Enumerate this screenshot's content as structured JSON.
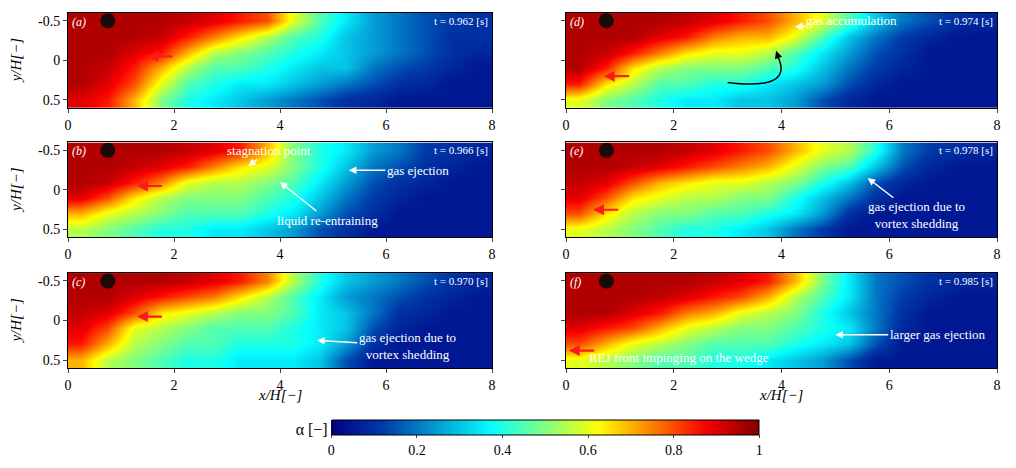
{
  "chart_data": {
    "type": "heatmap",
    "xlabel": "x/H[−]",
    "ylabel": "y/H[−]",
    "xlim": [
      0,
      8
    ],
    "ylim": [
      0.6,
      -0.6
    ],
    "xticks": [
      0,
      2,
      4,
      6,
      8
    ],
    "yticks": [
      -0.5,
      0,
      0.5
    ],
    "x": [
      0.25,
      0.75,
      1.25,
      1.75,
      2.25,
      2.75,
      3.25,
      3.75,
      4.25,
      4.75,
      5.25,
      5.75,
      6.25,
      6.75,
      7.25,
      7.75
    ],
    "y": [
      -0.5,
      -0.3,
      -0.1,
      0.1,
      0.3,
      0.5
    ],
    "colorbar": {
      "title": "α [−]",
      "range": [
        0,
        1
      ],
      "ticks": [
        0,
        0.2,
        0.4,
        0.6,
        0.8,
        1
      ]
    },
    "panels": [
      {
        "label": "(a)",
        "time": "t = 0.962 [s]",
        "dot": [
          0.75,
          -0.5
        ],
        "front_arrow": [
          1.5,
          -0.05
        ],
        "z": [
          [
            0.95,
            0.95,
            0.95,
            0.95,
            0.93,
            0.9,
            0.85,
            0.8,
            0.6,
            0.45,
            0.35,
            0.25,
            0.2,
            0.15,
            0.12,
            0.1
          ],
          [
            0.95,
            0.95,
            0.95,
            0.93,
            0.85,
            0.75,
            0.65,
            0.55,
            0.45,
            0.4,
            0.3,
            0.25,
            0.2,
            0.15,
            0.1,
            0.1
          ],
          [
            0.95,
            0.95,
            0.9,
            0.85,
            0.7,
            0.55,
            0.5,
            0.45,
            0.4,
            0.35,
            0.3,
            0.25,
            0.2,
            0.15,
            0.1,
            0.08
          ],
          [
            0.95,
            0.93,
            0.85,
            0.7,
            0.55,
            0.45,
            0.45,
            0.4,
            0.35,
            0.3,
            0.3,
            0.2,
            0.15,
            0.12,
            0.08,
            0.05
          ],
          [
            0.95,
            0.9,
            0.8,
            0.6,
            0.45,
            0.4,
            0.35,
            0.35,
            0.3,
            0.25,
            0.2,
            0.15,
            0.1,
            0.08,
            0.05,
            0.05
          ],
          [
            0.9,
            0.85,
            0.7,
            0.5,
            0.4,
            0.35,
            0.3,
            0.25,
            0.2,
            0.15,
            0.1,
            0.08,
            0.05,
            0.05,
            0.05,
            0.05
          ]
        ],
        "notes": []
      },
      {
        "label": "(b)",
        "time": "t = 0.966 [s]",
        "dot": [
          0.75,
          -0.5
        ],
        "front_arrow": [
          1.3,
          -0.05
        ],
        "z": [
          [
            0.95,
            0.95,
            0.95,
            0.95,
            0.93,
            0.9,
            0.85,
            0.7,
            0.5,
            0.4,
            0.35,
            0.25,
            0.2,
            0.12,
            0.1,
            0.08
          ],
          [
            0.95,
            0.95,
            0.93,
            0.9,
            0.85,
            0.75,
            0.65,
            0.6,
            0.5,
            0.4,
            0.3,
            0.2,
            0.15,
            0.1,
            0.08,
            0.05
          ],
          [
            0.95,
            0.93,
            0.85,
            0.75,
            0.6,
            0.55,
            0.55,
            0.5,
            0.45,
            0.35,
            0.25,
            0.15,
            0.1,
            0.08,
            0.05,
            0.05
          ],
          [
            0.9,
            0.8,
            0.65,
            0.55,
            0.5,
            0.5,
            0.5,
            0.45,
            0.4,
            0.3,
            0.2,
            0.12,
            0.08,
            0.05,
            0.05,
            0.05
          ],
          [
            0.7,
            0.6,
            0.55,
            0.5,
            0.45,
            0.45,
            0.45,
            0.4,
            0.35,
            0.25,
            0.15,
            0.1,
            0.05,
            0.05,
            0.05,
            0.05
          ],
          [
            0.55,
            0.5,
            0.45,
            0.4,
            0.4,
            0.35,
            0.35,
            0.3,
            0.25,
            0.15,
            0.1,
            0.05,
            0.05,
            0.05,
            0.05,
            0.05
          ]
        ],
        "notes": [
          {
            "text": "stagnation point",
            "x": 3.4,
            "y": -0.3,
            "ax": 3.8,
            "ay": -0.5
          },
          {
            "text": "gas ejection",
            "x": 5.3,
            "y": -0.25,
            "ax": 6.6,
            "ay": -0.25
          },
          {
            "text": "liquid re-entraining",
            "x": 4.0,
            "y": -0.1,
            "ax": 4.9,
            "ay": 0.38
          }
        ]
      },
      {
        "label": "(c)",
        "time": "t = 0.970 [s]",
        "dot": [
          0.75,
          -0.5
        ],
        "front_arrow": [
          1.3,
          -0.05
        ],
        "z": [
          [
            0.95,
            0.95,
            0.95,
            0.95,
            0.93,
            0.9,
            0.85,
            0.75,
            0.55,
            0.4,
            0.3,
            0.25,
            0.2,
            0.15,
            0.1,
            0.08
          ],
          [
            0.95,
            0.95,
            0.9,
            0.85,
            0.8,
            0.75,
            0.65,
            0.55,
            0.45,
            0.35,
            0.25,
            0.2,
            0.15,
            0.1,
            0.08,
            0.05
          ],
          [
            0.93,
            0.9,
            0.8,
            0.65,
            0.6,
            0.55,
            0.5,
            0.5,
            0.45,
            0.35,
            0.3,
            0.2,
            0.1,
            0.08,
            0.05,
            0.05
          ],
          [
            0.9,
            0.8,
            0.6,
            0.55,
            0.5,
            0.45,
            0.45,
            0.45,
            0.4,
            0.35,
            0.3,
            0.15,
            0.08,
            0.05,
            0.05,
            0.05
          ],
          [
            0.85,
            0.7,
            0.55,
            0.5,
            0.45,
            0.45,
            0.4,
            0.4,
            0.4,
            0.35,
            0.25,
            0.1,
            0.05,
            0.05,
            0.05,
            0.05
          ],
          [
            0.7,
            0.55,
            0.5,
            0.45,
            0.4,
            0.4,
            0.35,
            0.35,
            0.35,
            0.3,
            0.15,
            0.05,
            0.05,
            0.05,
            0.05,
            0.05
          ]
        ],
        "notes": [
          {
            "text": "gas ejection due to\nvortex shedding",
            "x": 4.7,
            "y": 0.25,
            "ax": 6.4,
            "ay": 0.32
          }
        ]
      },
      {
        "label": "(d)",
        "time": "t = 0.974 [s]",
        "dot": [
          0.75,
          -0.5
        ],
        "front_arrow": [
          0.7,
          0.2
        ],
        "z": [
          [
            0.95,
            0.95,
            0.95,
            0.95,
            0.93,
            0.9,
            0.85,
            0.8,
            0.7,
            0.6,
            0.45,
            0.3,
            0.2,
            0.15,
            0.1,
            0.08
          ],
          [
            0.95,
            0.95,
            0.95,
            0.9,
            0.85,
            0.75,
            0.7,
            0.7,
            0.6,
            0.45,
            0.3,
            0.2,
            0.12,
            0.08,
            0.05,
            0.05
          ],
          [
            0.95,
            0.93,
            0.85,
            0.75,
            0.65,
            0.6,
            0.6,
            0.55,
            0.45,
            0.35,
            0.25,
            0.15,
            0.1,
            0.05,
            0.05,
            0.05
          ],
          [
            0.95,
            0.85,
            0.65,
            0.55,
            0.5,
            0.5,
            0.5,
            0.45,
            0.4,
            0.3,
            0.2,
            0.12,
            0.08,
            0.05,
            0.05,
            0.05
          ],
          [
            0.85,
            0.65,
            0.55,
            0.45,
            0.45,
            0.4,
            0.4,
            0.35,
            0.3,
            0.25,
            0.15,
            0.08,
            0.05,
            0.05,
            0.05,
            0.05
          ],
          [
            0.6,
            0.5,
            0.45,
            0.4,
            0.35,
            0.35,
            0.3,
            0.3,
            0.25,
            0.15,
            0.08,
            0.05,
            0.05,
            0.05,
            0.05,
            0.05
          ]
        ],
        "notes": [
          {
            "text": "gas accumulation",
            "x": 4.25,
            "y": -0.42,
            "ax": 5.3,
            "ay": -0.5
          }
        ]
      },
      {
        "label": "(e)",
        "time": "t = 0.978 [s]",
        "dot": [
          0.75,
          -0.5
        ],
        "front_arrow": [
          0.5,
          0.25
        ],
        "z": [
          [
            0.95,
            0.95,
            0.95,
            0.95,
            0.93,
            0.9,
            0.85,
            0.8,
            0.7,
            0.6,
            0.55,
            0.4,
            0.2,
            0.12,
            0.1,
            0.08
          ],
          [
            0.95,
            0.95,
            0.93,
            0.9,
            0.85,
            0.8,
            0.75,
            0.7,
            0.6,
            0.5,
            0.45,
            0.3,
            0.15,
            0.08,
            0.05,
            0.05
          ],
          [
            0.93,
            0.9,
            0.8,
            0.7,
            0.65,
            0.6,
            0.6,
            0.55,
            0.5,
            0.4,
            0.3,
            0.15,
            0.08,
            0.05,
            0.05,
            0.05
          ],
          [
            0.9,
            0.8,
            0.65,
            0.6,
            0.55,
            0.55,
            0.5,
            0.5,
            0.4,
            0.3,
            0.2,
            0.1,
            0.05,
            0.05,
            0.05,
            0.05
          ],
          [
            0.8,
            0.65,
            0.55,
            0.5,
            0.5,
            0.45,
            0.45,
            0.4,
            0.35,
            0.25,
            0.1,
            0.05,
            0.05,
            0.05,
            0.05,
            0.05
          ],
          [
            0.6,
            0.55,
            0.5,
            0.45,
            0.4,
            0.4,
            0.35,
            0.3,
            0.2,
            0.12,
            0.05,
            0.05,
            0.05,
            0.05,
            0.05,
            0.05
          ]
        ],
        "notes": [
          {
            "text": "gas ejection due to\nvortex shedding",
            "x": 5.6,
            "y": -0.15,
            "ax": 6.5,
            "ay": 0.32
          }
        ]
      },
      {
        "label": "(f)",
        "time": "t = 0.985 [s]",
        "dot": [
          0.75,
          -0.5
        ],
        "front_arrow": [
          0.05,
          0.38
        ],
        "z": [
          [
            0.95,
            0.95,
            0.95,
            0.95,
            0.95,
            0.93,
            0.9,
            0.85,
            0.7,
            0.5,
            0.35,
            0.2,
            0.15,
            0.1,
            0.08,
            0.08
          ],
          [
            0.95,
            0.95,
            0.95,
            0.93,
            0.9,
            0.85,
            0.8,
            0.7,
            0.55,
            0.45,
            0.35,
            0.2,
            0.12,
            0.08,
            0.05,
            0.05
          ],
          [
            0.95,
            0.95,
            0.9,
            0.85,
            0.75,
            0.7,
            0.6,
            0.55,
            0.5,
            0.4,
            0.3,
            0.2,
            0.1,
            0.05,
            0.05,
            0.05
          ],
          [
            0.9,
            0.85,
            0.8,
            0.7,
            0.6,
            0.55,
            0.5,
            0.5,
            0.45,
            0.4,
            0.35,
            0.2,
            0.08,
            0.05,
            0.05,
            0.05
          ],
          [
            0.8,
            0.7,
            0.6,
            0.55,
            0.5,
            0.45,
            0.45,
            0.45,
            0.4,
            0.35,
            0.3,
            0.15,
            0.05,
            0.05,
            0.05,
            0.05
          ],
          [
            0.6,
            0.55,
            0.5,
            0.45,
            0.45,
            0.4,
            0.4,
            0.35,
            0.3,
            0.25,
            0.15,
            0.05,
            0.05,
            0.05,
            0.05,
            0.05
          ]
        ],
        "notes": [
          {
            "text": "larger gas ejection",
            "x": 5.0,
            "y": 0.18,
            "ax": 6.9,
            "ay": 0.18
          },
          {
            "text": "REJ front impinging on the wedge",
            "x": 2.1,
            "y": 0.47
          }
        ]
      }
    ]
  }
}
